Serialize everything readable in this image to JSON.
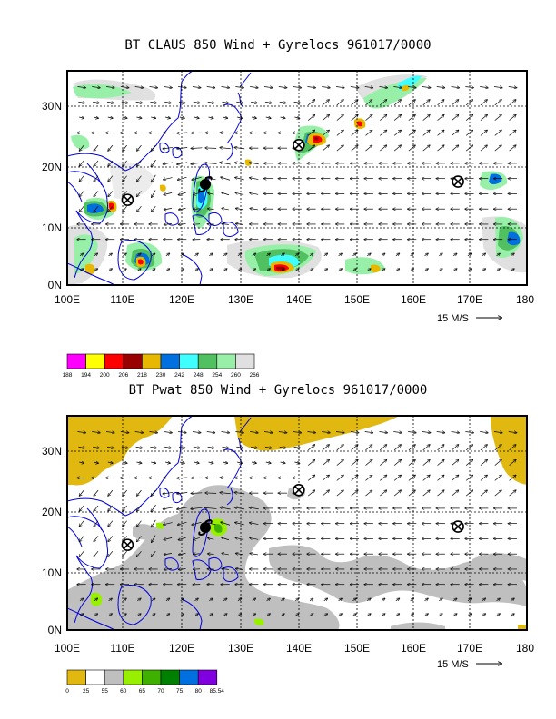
{
  "panels": [
    {
      "title": "BT CLAUS 850 Wind + Gyrelocs 961017/0000",
      "lat_labels": [
        "30N",
        "20N",
        "10N",
        "0N"
      ],
      "lon_labels": [
        "100E",
        "110E",
        "120E",
        "130E",
        "140E",
        "150E",
        "160E",
        "170E",
        "180"
      ],
      "ref_vector_label": "15 M/S",
      "colorbar_labels": [
        "188",
        "194",
        "200",
        "206",
        "218",
        "230",
        "242",
        "248",
        "254",
        "260",
        "266"
      ],
      "colorbar_colors": [
        "#ff00ff",
        "#ffff00",
        "#ff0000",
        "#990000",
        "#e8b800",
        "#0070e0",
        "#40ffff",
        "#50c060",
        "#98f0a8",
        "#e0e0e0"
      ],
      "gyre_locations": [
        {
          "lat": 14,
          "lon": 110.5
        },
        {
          "lat": 23,
          "lon": 140.3
        },
        {
          "lat": 17,
          "lon": 168
        }
      ]
    },
    {
      "title": "BT Pwat 850 Wind + Gyrelocs 961017/0000",
      "lat_labels": [
        "30N",
        "20N",
        "10N",
        "0N"
      ],
      "lon_labels": [
        "100E",
        "110E",
        "120E",
        "130E",
        "140E",
        "150E",
        "160E",
        "170E",
        "180"
      ],
      "ref_vector_label": "15 M/S",
      "colorbar_labels": [
        "0",
        "25",
        "55",
        "60",
        "65",
        "70",
        "75",
        "80",
        "85.54"
      ],
      "colorbar_colors": [
        "#e0b810",
        "#ffffff",
        "#bfbfbf",
        "#98f000",
        "#40b000",
        "#008000",
        "#0070e0",
        "#8000e0"
      ],
      "gyre_locations": [
        {
          "lat": 14,
          "lon": 110.5
        },
        {
          "lat": 23,
          "lon": 140.3
        },
        {
          "lat": 17,
          "lon": 168
        }
      ]
    }
  ]
}
